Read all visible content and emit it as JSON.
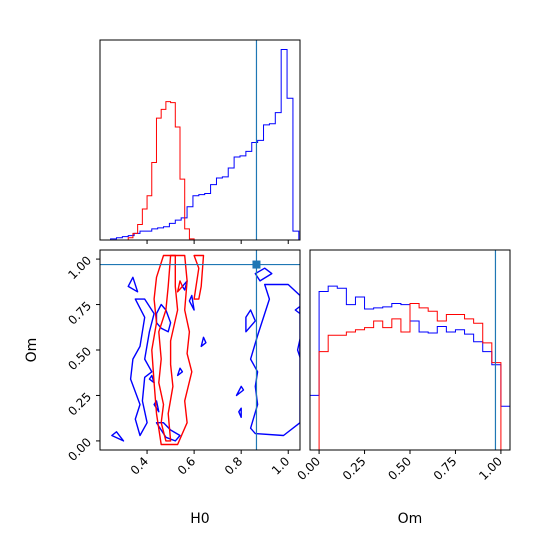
{
  "colors": {
    "blue": "#0000ff",
    "red": "#ff0000",
    "truth": "#1f77b4",
    "frame": "#000000"
  },
  "chart_data": [
    {
      "type": "histogram",
      "panel": "H0 marginal",
      "xlim": [
        0.2,
        1.05
      ],
      "truth": 0.865,
      "series": [
        {
          "color": "blue",
          "edges": [
            0.245,
            0.27,
            0.295,
            0.32,
            0.345,
            0.37,
            0.395,
            0.42,
            0.445,
            0.47,
            0.495,
            0.52,
            0.545,
            0.57,
            0.595,
            0.62,
            0.645,
            0.67,
            0.695,
            0.72,
            0.745,
            0.77,
            0.795,
            0.82,
            0.845,
            0.87,
            0.895,
            0.92,
            0.945,
            0.97,
            0.995,
            1.02,
            1.045
          ],
          "counts": [
            1,
            2,
            3,
            4,
            6,
            8,
            8,
            10,
            11,
            12,
            15,
            18,
            20,
            30,
            40,
            41,
            42,
            50,
            56,
            57,
            65,
            75,
            76,
            80,
            88,
            90,
            104,
            105,
            115,
            172,
            128,
            8
          ]
        },
        {
          "color": "red",
          "edges": [
            0.32,
            0.34,
            0.36,
            0.38,
            0.4,
            0.42,
            0.44,
            0.46,
            0.48,
            0.5,
            0.52,
            0.54,
            0.56,
            0.58,
            0.6
          ],
          "counts": [
            2,
            6,
            14,
            28,
            40,
            70,
            110,
            118,
            125,
            124,
            102,
            55,
            10,
            1
          ]
        }
      ]
    },
    {
      "type": "contour",
      "panel": "H0 vs Om",
      "xlabel": "H0",
      "ylabel": "Om",
      "xlim": [
        0.2,
        1.05
      ],
      "ylim": [
        -0.05,
        1.05
      ],
      "xticks": [
        "0.4",
        "0.6",
        "0.8",
        "1.0"
      ],
      "yticks": [
        "0.00",
        "0.25",
        "0.50",
        "0.75",
        "1.00"
      ],
      "truth": [
        0.865,
        0.97
      ],
      "series": [
        {
          "color": "blue",
          "contours": [
            [
              [
                0.84,
                0.07
              ],
              [
                0.86,
                0.04
              ],
              [
                0.98,
                0.03
              ],
              [
                1.05,
                0.1
              ],
              [
                1.05,
                0.8
              ],
              [
                1.0,
                0.86
              ],
              [
                0.9,
                0.86
              ],
              [
                0.92,
                0.78
              ],
              [
                0.9,
                0.7
              ],
              [
                0.87,
                0.58
              ],
              [
                0.84,
                0.45
              ],
              [
                0.87,
                0.38
              ],
              [
                0.86,
                0.3
              ],
              [
                0.87,
                0.2
              ]
            ],
            [
              [
                0.88,
                0.88
              ],
              [
                0.93,
                0.92
              ],
              [
                0.9,
                0.95
              ],
              [
                0.86,
                0.92
              ]
            ],
            [
              [
                0.35,
                0.78
              ],
              [
                0.39,
                0.68
              ],
              [
                0.37,
                0.52
              ],
              [
                0.34,
                0.45
              ],
              [
                0.33,
                0.34
              ],
              [
                0.37,
                0.2
              ],
              [
                0.35,
                0.12
              ],
              [
                0.37,
                0.03
              ],
              [
                0.4,
                0.1
              ],
              [
                0.38,
                0.22
              ],
              [
                0.39,
                0.35
              ],
              [
                0.42,
                0.38
              ],
              [
                0.39,
                0.45
              ],
              [
                0.41,
                0.6
              ],
              [
                0.43,
                0.7
              ],
              [
                0.39,
                0.78
              ]
            ],
            [
              [
                0.44,
                0.7
              ],
              [
                0.46,
                0.75
              ],
              [
                0.48,
                0.72
              ],
              [
                0.5,
                0.65
              ],
              [
                0.49,
                0.6
              ],
              [
                0.46,
                0.62
              ],
              [
                0.44,
                0.65
              ]
            ],
            [
              [
                0.44,
                0.1
              ],
              [
                0.48,
                0.02
              ],
              [
                0.52,
                0.0
              ],
              [
                0.54,
                0.03
              ],
              [
                0.5,
                0.06
              ],
              [
                0.47,
                0.1
              ]
            ],
            [
              [
                0.25,
                0.03
              ],
              [
                0.3,
                0.0
              ],
              [
                0.27,
                0.05
              ]
            ],
            [
              [
                0.32,
                0.85
              ],
              [
                0.36,
                0.82
              ],
              [
                0.34,
                0.9
              ]
            ],
            [
              [
                0.58,
                0.77
              ],
              [
                0.6,
                0.72
              ],
              [
                0.59,
                0.8
              ]
            ],
            [
              [
                0.55,
                0.85
              ],
              [
                0.57,
                0.88
              ],
              [
                0.56,
                0.83
              ]
            ],
            [
              [
                0.43,
                0.2
              ],
              [
                0.45,
                0.16
              ],
              [
                0.44,
                0.22
              ]
            ],
            [
              [
                0.41,
                0.34
              ],
              [
                0.43,
                0.32
              ],
              [
                0.42,
                0.36
              ]
            ],
            [
              [
                0.53,
                0.36
              ],
              [
                0.55,
                0.38
              ],
              [
                0.54,
                0.4
              ]
            ],
            [
              [
                0.63,
                0.52
              ],
              [
                0.65,
                0.54
              ],
              [
                0.64,
                0.57
              ]
            ],
            [
              [
                0.82,
                0.6
              ],
              [
                0.86,
                0.66
              ],
              [
                0.84,
                0.72
              ],
              [
                0.82,
                0.68
              ]
            ],
            [
              [
                0.79,
                0.16
              ],
              [
                0.8,
                0.13
              ],
              [
                0.8,
                0.18
              ]
            ],
            [
              [
                0.78,
                0.25
              ],
              [
                0.81,
                0.28
              ],
              [
                0.8,
                0.3
              ]
            ],
            [
              [
                1.04,
                0.5
              ],
              [
                1.05,
                0.46
              ],
              [
                1.05,
                0.56
              ]
            ],
            [
              [
                1.03,
                0.72
              ],
              [
                1.05,
                0.7
              ],
              [
                1.05,
                0.74
              ]
            ]
          ]
        },
        {
          "color": "red",
          "contours": [
            [
              [
                0.48,
                0.0
              ],
              [
                0.46,
                0.1
              ],
              [
                0.47,
                0.2
              ],
              [
                0.45,
                0.32
              ],
              [
                0.46,
                0.45
              ],
              [
                0.45,
                0.6
              ],
              [
                0.48,
                0.72
              ],
              [
                0.49,
                0.85
              ],
              [
                0.5,
                1.02
              ],
              [
                0.52,
                1.02
              ],
              [
                0.52,
                0.85
              ],
              [
                0.53,
                0.72
              ],
              [
                0.5,
                0.55
              ],
              [
                0.5,
                0.42
              ],
              [
                0.51,
                0.3
              ],
              [
                0.49,
                0.15
              ],
              [
                0.5,
                0.0
              ]
            ],
            [
              [
                0.46,
                -0.02
              ],
              [
                0.44,
                0.15
              ],
              [
                0.43,
                0.32
              ],
              [
                0.42,
                0.5
              ],
              [
                0.44,
                0.65
              ],
              [
                0.43,
                0.78
              ],
              [
                0.44,
                0.9
              ],
              [
                0.47,
                1.02
              ],
              [
                0.56,
                1.02
              ],
              [
                0.57,
                0.88
              ],
              [
                0.56,
                0.72
              ],
              [
                0.58,
                0.6
              ],
              [
                0.57,
                0.48
              ],
              [
                0.59,
                0.38
              ],
              [
                0.56,
                0.22
              ],
              [
                0.57,
                0.1
              ],
              [
                0.53,
                -0.02
              ]
            ],
            [
              [
                0.6,
                0.78
              ],
              [
                0.62,
                0.95
              ],
              [
                0.6,
                1.02
              ],
              [
                0.64,
                1.02
              ],
              [
                0.63,
                0.85
              ],
              [
                0.62,
                0.78
              ]
            ],
            [
              [
                0.53,
                0.82
              ],
              [
                0.54,
                0.88
              ],
              [
                0.55,
                0.85
              ]
            ]
          ]
        }
      ]
    },
    {
      "type": "histogram",
      "panel": "Om marginal",
      "xlabel": "Om",
      "xlim": [
        -0.05,
        1.05
      ],
      "xticks": [
        "0.00",
        "0.25",
        "0.50",
        "0.75",
        "1.00"
      ],
      "truth": 0.97,
      "series": [
        {
          "color": "blue",
          "edges": [
            -0.05,
            0.0,
            0.05,
            0.1,
            0.15,
            0.2,
            0.25,
            0.3,
            0.35,
            0.4,
            0.45,
            0.5,
            0.55,
            0.6,
            0.65,
            0.7,
            0.75,
            0.8,
            0.85,
            0.9,
            0.95,
            1.0,
            1.05
          ],
          "counts": [
            50,
            145,
            150,
            148,
            133,
            140,
            129,
            130,
            131,
            134,
            133,
            118,
            108,
            107,
            113,
            108,
            110,
            106,
            99,
            90,
            78,
            40
          ]
        },
        {
          "color": "red",
          "edges": [
            0.0,
            0.05,
            0.1,
            0.15,
            0.2,
            0.25,
            0.3,
            0.35,
            0.4,
            0.45,
            0.5,
            0.55,
            0.6,
            0.65,
            0.7,
            0.75,
            0.8,
            0.85,
            0.9,
            0.95,
            1.0
          ],
          "counts": [
            90,
            105,
            105,
            108,
            110,
            112,
            118,
            112,
            120,
            108,
            134,
            130,
            127,
            118,
            124,
            124,
            120,
            116,
            98,
            80
          ]
        }
      ]
    }
  ]
}
